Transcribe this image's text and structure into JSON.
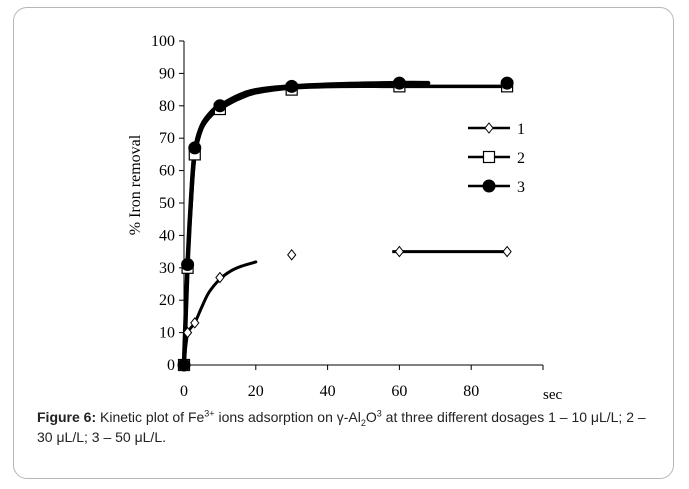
{
  "chart_data": {
    "type": "line",
    "title": "",
    "xlabel": "sec",
    "ylabel": "% Iron removal",
    "xlim": [
      0,
      100
    ],
    "ylim": [
      0,
      100
    ],
    "x_ticks": [
      "0",
      "20",
      "40",
      "60",
      "80"
    ],
    "y_ticks": [
      "0",
      "10",
      "20",
      "30",
      "40",
      "50",
      "60",
      "70",
      "80",
      "90",
      "100"
    ],
    "grid": false,
    "legend_position": "right",
    "series": [
      {
        "name": "1",
        "marker": "diamond-open",
        "points": [
          [
            0,
            0
          ],
          [
            1,
            10
          ],
          [
            3,
            13
          ],
          [
            10,
            27
          ],
          [
            30,
            34
          ],
          [
            60,
            35
          ],
          [
            90,
            35
          ]
        ],
        "fit": [
          [
            0,
            0
          ],
          [
            1,
            9.5
          ],
          [
            3,
            13
          ],
          [
            5,
            18
          ],
          [
            7,
            22.5
          ],
          [
            10,
            26.5
          ],
          [
            13,
            29
          ],
          [
            16,
            30.5
          ],
          [
            20,
            31.8
          ]
        ],
        "fit2": [
          [
            58,
            35
          ],
          [
            90,
            35
          ]
        ]
      },
      {
        "name": "2",
        "marker": "square-open",
        "points": [
          [
            0,
            0
          ],
          [
            1,
            30
          ],
          [
            3,
            65
          ],
          [
            10,
            79
          ],
          [
            30,
            85
          ],
          [
            60,
            86
          ],
          [
            90,
            86
          ]
        ],
        "fit": [
          [
            0,
            0
          ],
          [
            1,
            30
          ],
          [
            2,
            50
          ],
          [
            3,
            64
          ],
          [
            5,
            73
          ],
          [
            8,
            77.5
          ],
          [
            10,
            79
          ],
          [
            15,
            82
          ],
          [
            20,
            84
          ],
          [
            30,
            85.5
          ],
          [
            45,
            86
          ],
          [
            60,
            86
          ],
          [
            90,
            86
          ]
        ]
      },
      {
        "name": "3",
        "marker": "circle-filled",
        "points": [
          [
            0,
            0
          ],
          [
            1,
            31
          ],
          [
            3,
            67
          ],
          [
            10,
            80
          ],
          [
            30,
            86
          ],
          [
            60,
            87
          ],
          [
            90,
            87
          ]
        ],
        "fit": [
          [
            0,
            0
          ],
          [
            1,
            31
          ],
          [
            2,
            52
          ],
          [
            3,
            66
          ],
          [
            5,
            74
          ],
          [
            8,
            78.5
          ],
          [
            10,
            80
          ],
          [
            15,
            83
          ],
          [
            20,
            84.8
          ],
          [
            30,
            86
          ],
          [
            45,
            86.7
          ],
          [
            60,
            87
          ],
          [
            68,
            87
          ]
        ]
      }
    ]
  },
  "caption": {
    "label": "Figure 6:",
    "text_a": " Kinetic plot of Fe",
    "sup_a": "3+",
    "text_b": " ions adsorption on γ-Al",
    "sub_b": "2",
    "text_c": "O",
    "sup_c": "3",
    "text_d": " at three different dosages 1 – 10 μL/L; 2 – 30 μL/L; 3 – 50 μL/L."
  }
}
